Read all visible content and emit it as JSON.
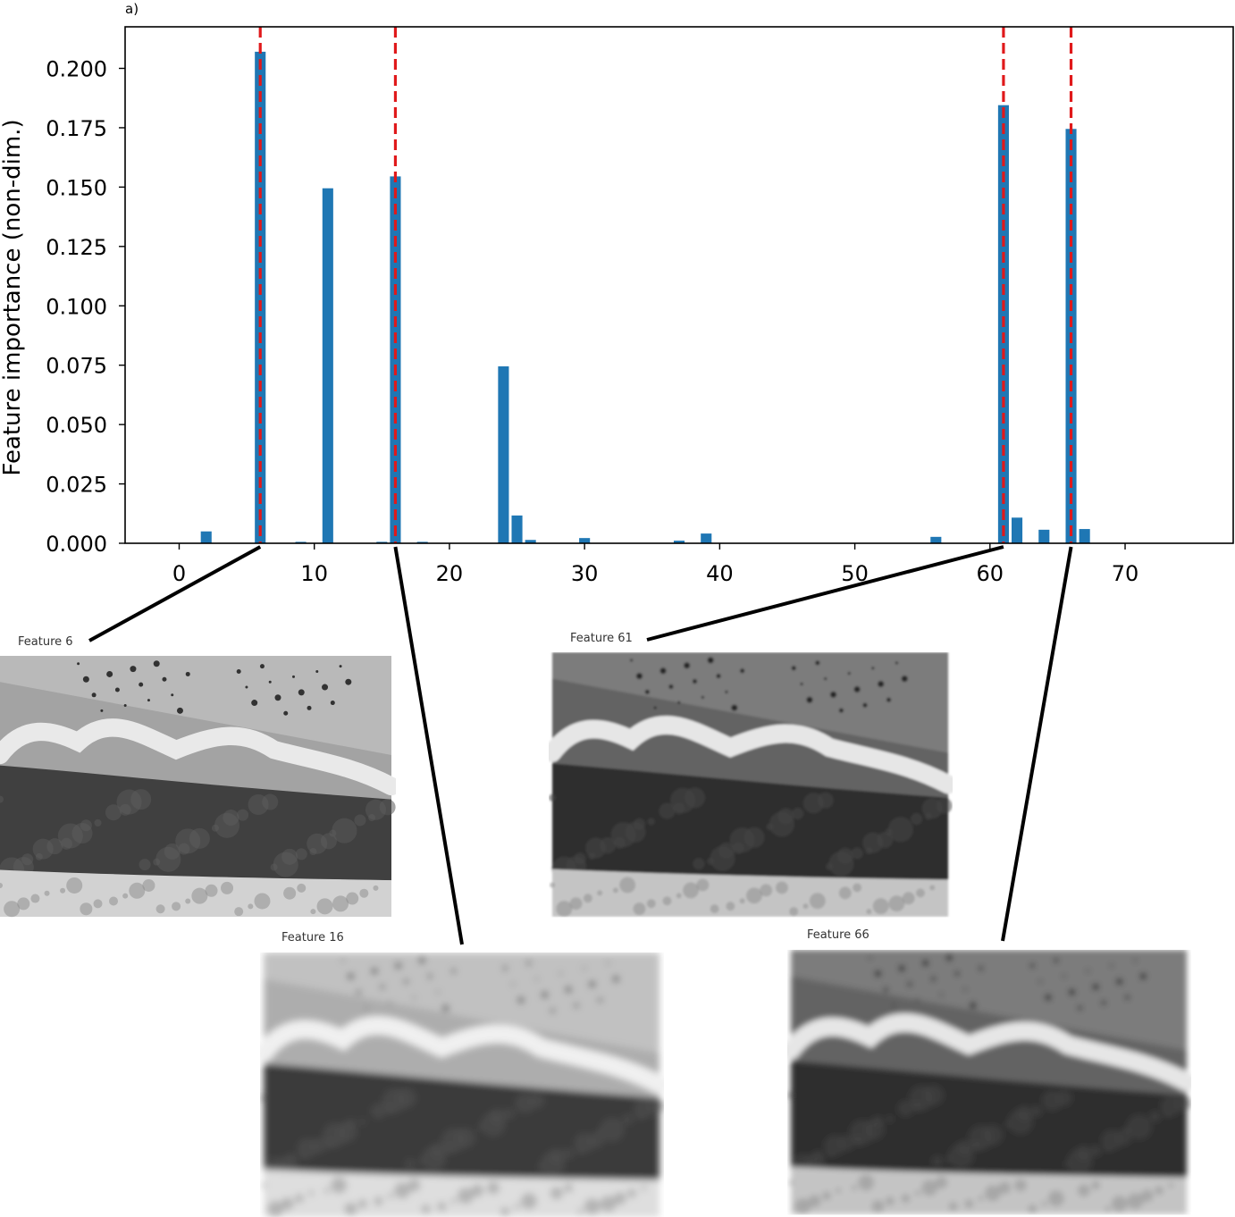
{
  "panel_label": "a)",
  "chart_data": {
    "type": "bar",
    "title": "",
    "xlabel": "",
    "ylabel": "Feature importance (non-dim.)",
    "xlim": [
      -4,
      78
    ],
    "ylim": [
      0,
      0.2175
    ],
    "xticks": [
      0,
      10,
      20,
      30,
      40,
      50,
      60,
      70
    ],
    "yticks": [
      0.0,
      0.025,
      0.05,
      0.075,
      0.1,
      0.125,
      0.15,
      0.175,
      0.2
    ],
    "ytick_labels": [
      "0.000",
      "0.025",
      "0.050",
      "0.075",
      "0.100",
      "0.125",
      "0.150",
      "0.175",
      "0.200"
    ],
    "grid": false,
    "bar_color": "#1f77b4",
    "marker_color": "#e0191b",
    "x": [
      2,
      6,
      9,
      11,
      15,
      16,
      18,
      24,
      25,
      26,
      30,
      37,
      39,
      56,
      61,
      62,
      64,
      66,
      67
    ],
    "values": [
      0.005,
      0.207,
      0.0006,
      0.1495,
      0.0006,
      0.1545,
      0.0006,
      0.0745,
      0.0117,
      0.0014,
      0.0022,
      0.0011,
      0.0041,
      0.0027,
      0.1845,
      0.0108,
      0.0057,
      0.1745,
      0.006
    ],
    "highlighted_features": [
      6,
      16,
      61,
      66
    ]
  },
  "thumbnails": [
    {
      "feature": 6,
      "caption": "Feature 6",
      "variant": "sharp",
      "blur": 0.3,
      "contrast": 1.15
    },
    {
      "feature": 16,
      "caption": "Feature 16",
      "variant": "light",
      "blur": 4.0,
      "contrast": 1.0
    },
    {
      "feature": 61,
      "caption": "Feature 61",
      "variant": "dark",
      "blur": 1.4,
      "contrast": 1.0
    },
    {
      "feature": 66,
      "caption": "Feature 66",
      "variant": "dark",
      "blur": 3.2,
      "contrast": 1.2
    }
  ]
}
